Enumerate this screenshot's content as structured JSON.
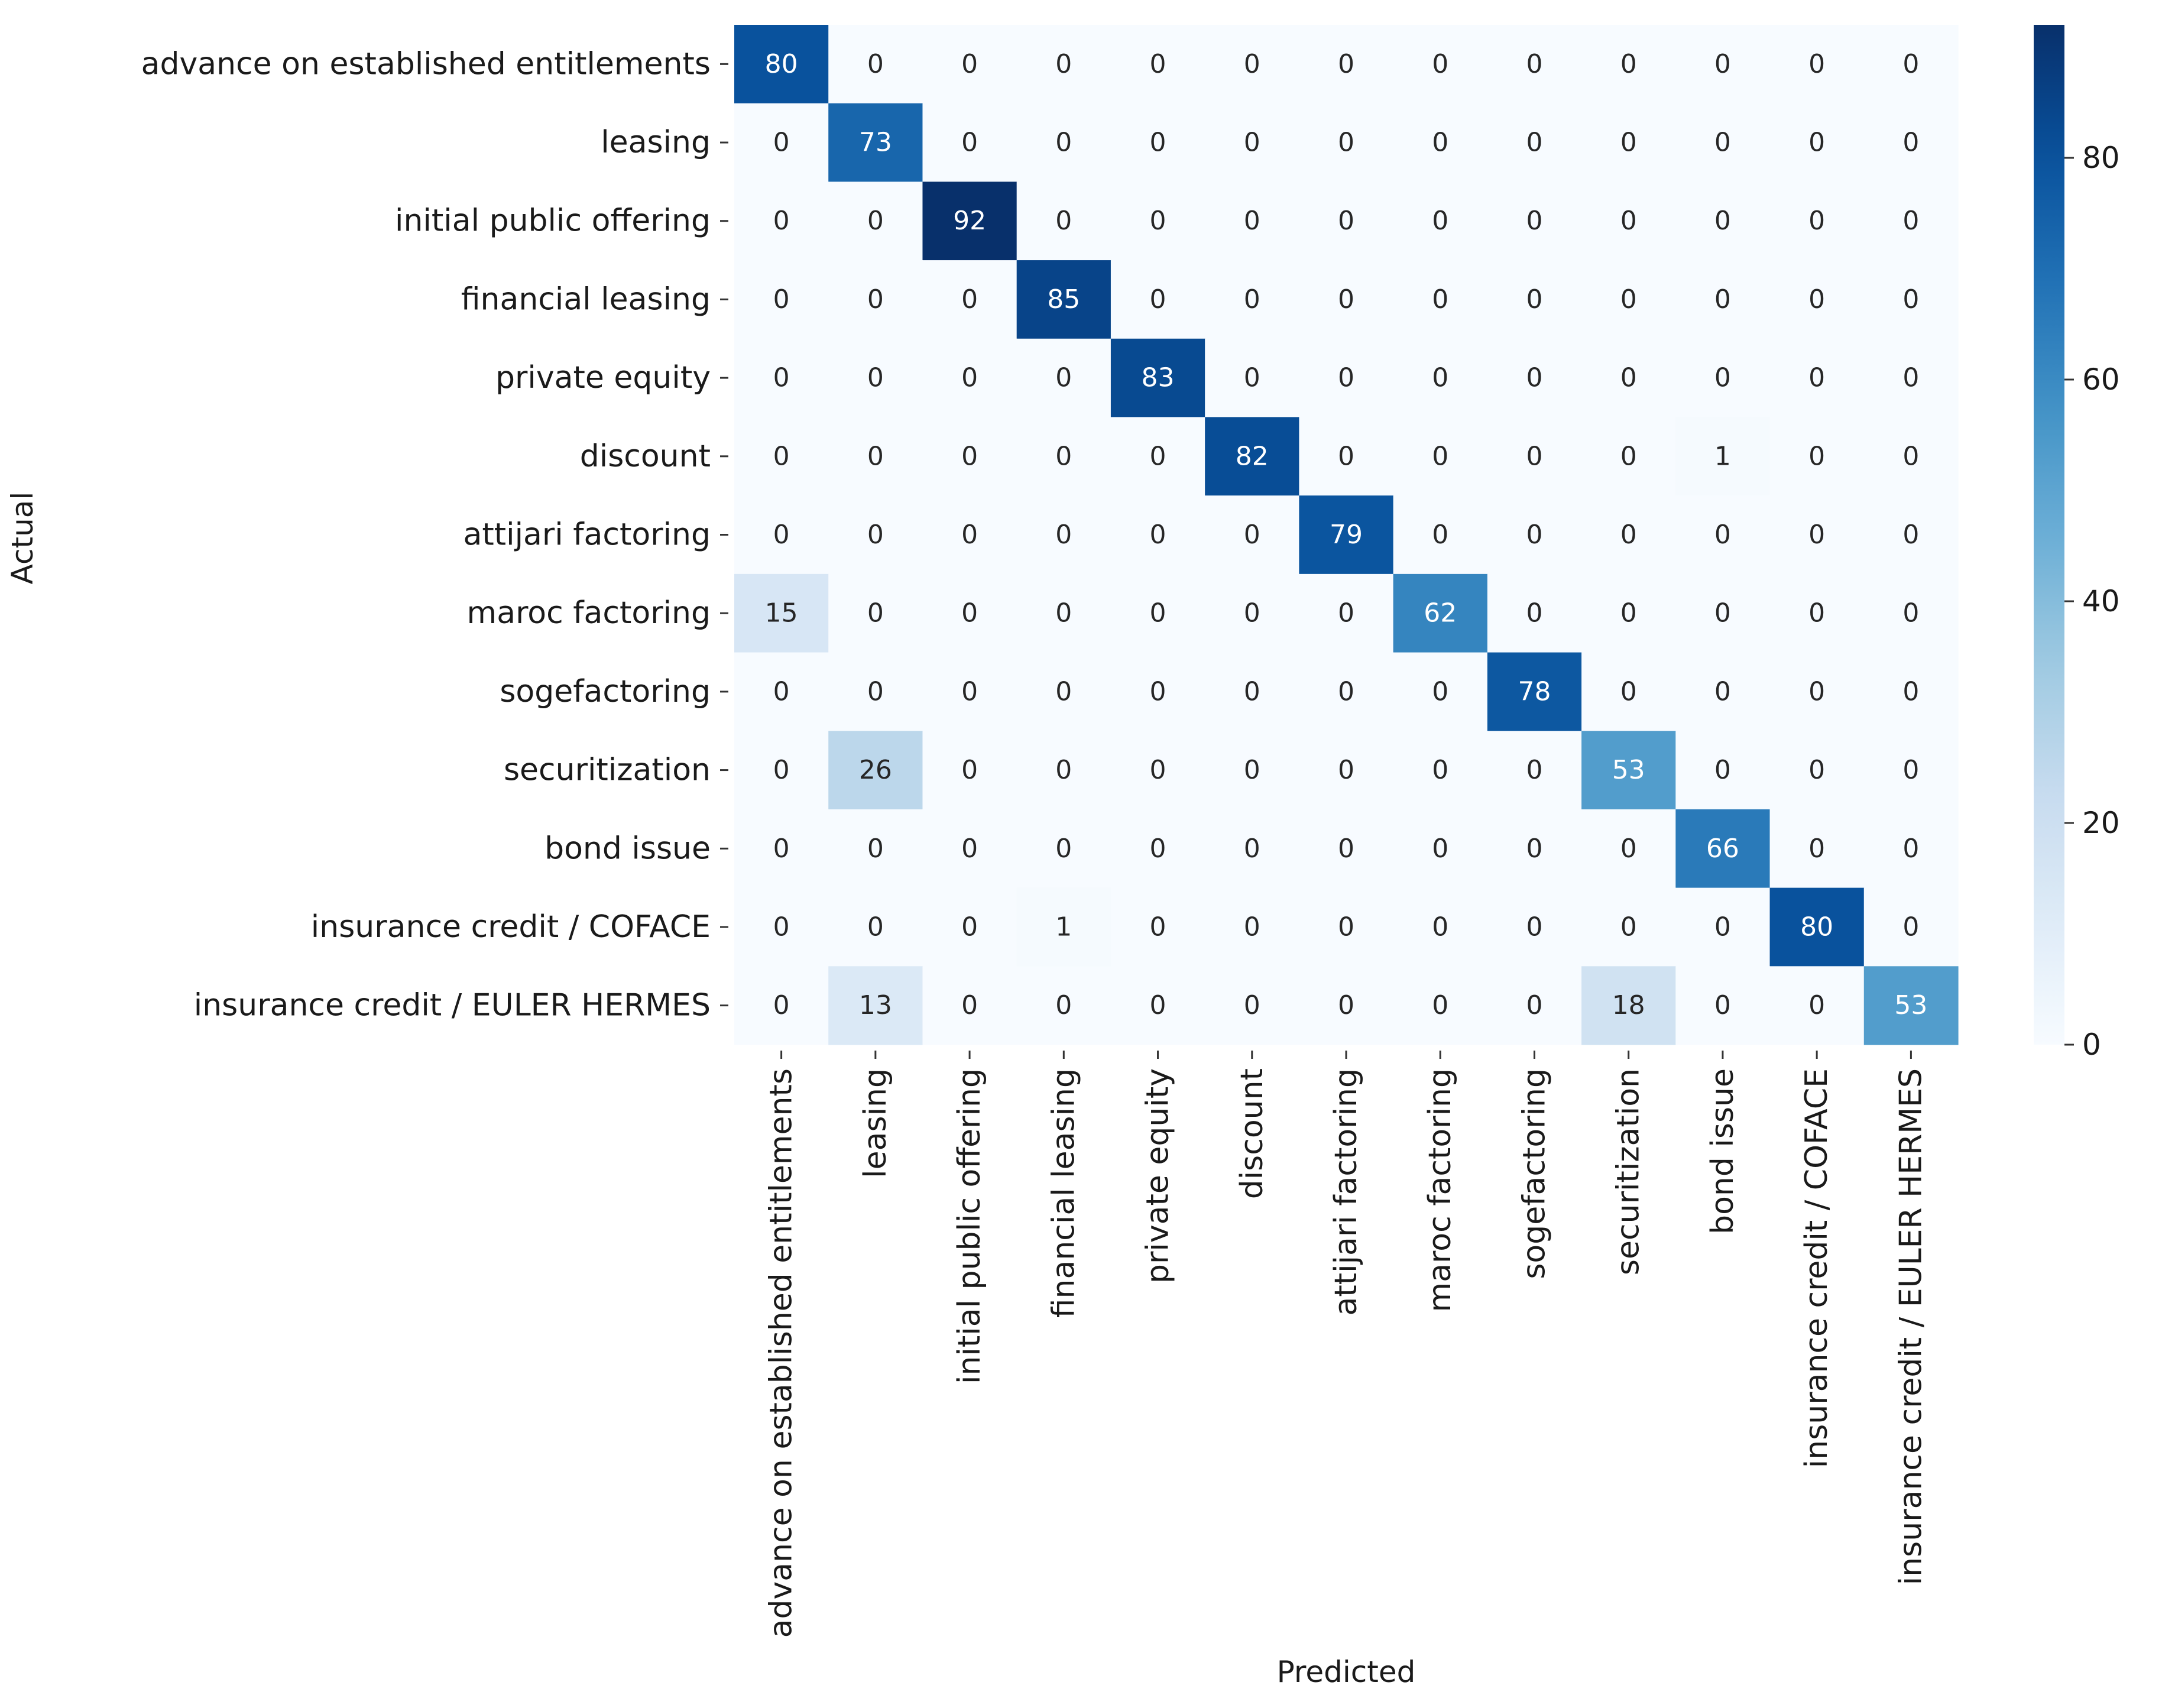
{
  "chart_data": {
    "type": "heatmap",
    "title": "",
    "xlabel": "Predicted",
    "ylabel": "Actual",
    "x_categories": [
      "advance on established entitlements",
      "leasing",
      "initial public offering",
      "financial leasing",
      "private equity",
      "discount",
      "attijari factoring",
      "maroc factoring",
      "sogefactoring",
      "securitization",
      "bond issue",
      "insurance credit / COFACE",
      "insurance credit / EULER HERMES"
    ],
    "y_categories": [
      "advance on established entitlements",
      "leasing",
      "initial public offering",
      "financial leasing",
      "private equity",
      "discount",
      "attijari factoring",
      "maroc factoring",
      "sogefactoring",
      "securitization",
      "bond issue",
      "insurance credit / COFACE",
      "insurance credit / EULER HERMES"
    ],
    "matrix": [
      [
        80,
        0,
        0,
        0,
        0,
        0,
        0,
        0,
        0,
        0,
        0,
        0,
        0
      ],
      [
        0,
        73,
        0,
        0,
        0,
        0,
        0,
        0,
        0,
        0,
        0,
        0,
        0
      ],
      [
        0,
        0,
        92,
        0,
        0,
        0,
        0,
        0,
        0,
        0,
        0,
        0,
        0
      ],
      [
        0,
        0,
        0,
        85,
        0,
        0,
        0,
        0,
        0,
        0,
        0,
        0,
        0
      ],
      [
        0,
        0,
        0,
        0,
        83,
        0,
        0,
        0,
        0,
        0,
        0,
        0,
        0
      ],
      [
        0,
        0,
        0,
        0,
        0,
        82,
        0,
        0,
        0,
        0,
        1,
        0,
        0
      ],
      [
        0,
        0,
        0,
        0,
        0,
        0,
        79,
        0,
        0,
        0,
        0,
        0,
        0
      ],
      [
        15,
        0,
        0,
        0,
        0,
        0,
        0,
        62,
        0,
        0,
        0,
        0,
        0
      ],
      [
        0,
        0,
        0,
        0,
        0,
        0,
        0,
        0,
        78,
        0,
        0,
        0,
        0
      ],
      [
        0,
        26,
        0,
        0,
        0,
        0,
        0,
        0,
        0,
        53,
        0,
        0,
        0
      ],
      [
        0,
        0,
        0,
        0,
        0,
        0,
        0,
        0,
        0,
        0,
        66,
        0,
        0
      ],
      [
        0,
        0,
        0,
        1,
        0,
        0,
        0,
        0,
        0,
        0,
        0,
        80,
        0
      ],
      [
        0,
        13,
        0,
        0,
        0,
        0,
        0,
        0,
        0,
        18,
        0,
        0,
        53
      ]
    ],
    "colormap": "Blues",
    "vmin": 0,
    "vmax": 92,
    "colorbar_ticks": [
      0,
      20,
      40,
      60,
      80
    ],
    "colorbar_tick_labels": [
      "0",
      "20",
      "40",
      "60",
      "80"
    ],
    "grid": false,
    "legend": "colorbar-right"
  }
}
